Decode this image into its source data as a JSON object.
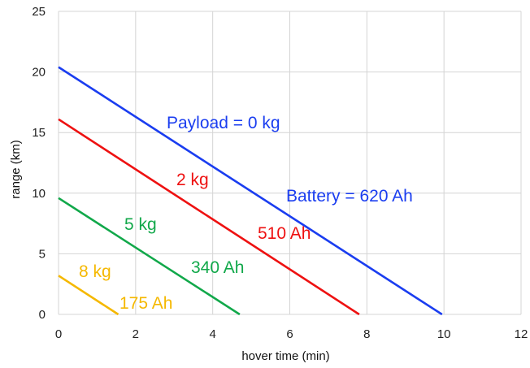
{
  "chart_data": {
    "type": "line",
    "title": "",
    "xlabel": "hover time (min)",
    "ylabel": "range (km)",
    "xlim": [
      0,
      12
    ],
    "ylim": [
      0,
      25
    ],
    "xticks": [
      0,
      2,
      4,
      6,
      8,
      10,
      12
    ],
    "yticks": [
      0,
      5,
      10,
      15,
      20,
      25
    ],
    "grid": true,
    "legend": "none",
    "series": [
      {
        "payload_label": "Payload = 0 kg",
        "battery_label": "Battery = 620 Ah",
        "color": "#1a3df0",
        "points": [
          [
            0,
            20.4
          ],
          [
            9.95,
            0
          ]
        ]
      },
      {
        "payload_label": "2 kg",
        "battery_label": "510 Ah",
        "color": "#ee1111",
        "points": [
          [
            0,
            16.1
          ],
          [
            7.8,
            0
          ]
        ]
      },
      {
        "payload_label": "5 kg",
        "battery_label": "340 Ah",
        "color": "#11a84a",
        "points": [
          [
            0,
            9.6
          ],
          [
            4.7,
            0
          ]
        ]
      },
      {
        "payload_label": "8 kg",
        "battery_label": "175 Ah",
        "color": "#f5b800",
        "points": [
          [
            0,
            3.2
          ],
          [
            1.55,
            0
          ]
        ]
      }
    ]
  }
}
